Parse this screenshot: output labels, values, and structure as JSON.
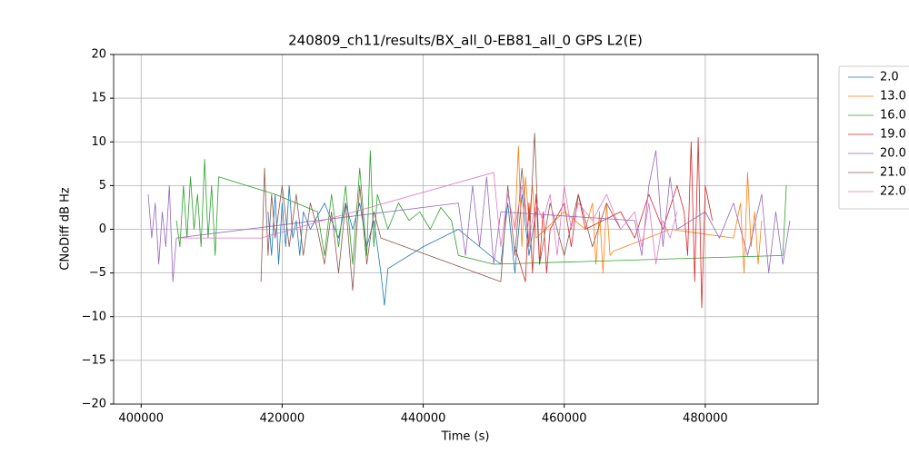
{
  "chart_data": {
    "type": "line",
    "title": "240809_ch11/results/BX_all_0-EB81_all_0 GPS L2(E)",
    "x_label": "Time (s)",
    "y_label": "CNoDiff dB Hz",
    "xlim": [
      396100,
      496000
    ],
    "ylim": [
      -20,
      20
    ],
    "xticks": [
      400000,
      420000,
      440000,
      460000,
      480000
    ],
    "yticks": [
      {
        "value": -20,
        "label": "−20"
      },
      {
        "value": -15,
        "label": "−15"
      },
      {
        "value": -10,
        "label": "−10"
      },
      {
        "value": -5,
        "label": "−5"
      },
      0,
      5,
      10,
      15,
      20
    ],
    "grid": true,
    "legend": "outside-upper-right",
    "series": [
      {
        "name": "2.0",
        "color": "#1f77b4",
        "x": [
          418000,
          418500,
          419000,
          419500,
          420000,
          420500,
          421000,
          421500,
          422000,
          422500,
          423000,
          424000,
          426000,
          428000,
          429000,
          430000,
          431000,
          432000,
          433000,
          434000,
          434500,
          435000,
          440000,
          445000,
          451000,
          452000,
          453000,
          454000,
          455000,
          456000
        ],
        "values": [
          2,
          -3,
          4,
          -4,
          3,
          -2,
          5,
          -1,
          1,
          -3,
          2,
          0,
          3,
          -1,
          3,
          0,
          3,
          -2,
          1,
          -5,
          -8.7,
          -4.5,
          -2,
          0,
          -4,
          3,
          -5,
          4,
          -3,
          2
        ]
      },
      {
        "name": "13.0",
        "color": "#ff7f0e",
        "x": [
          453000,
          453500,
          454000,
          454500,
          455000,
          455500,
          456000,
          460000,
          463000,
          464000,
          464500,
          465000,
          465500,
          466000,
          466500,
          467000,
          475000,
          484000,
          485000,
          485500,
          486000,
          486500,
          487000,
          487500,
          488000
        ],
        "values": [
          0,
          9.5,
          -2,
          6,
          1,
          5,
          -1,
          2,
          0,
          3,
          -4,
          2,
          -5,
          3,
          -3,
          -2.5,
          0,
          -1,
          3,
          -5,
          6.5,
          -2,
          2,
          -4,
          1
        ]
      },
      {
        "name": "16.0",
        "color": "#2ca02c",
        "x": [
          405000,
          405500,
          406000,
          406500,
          407000,
          407500,
          408000,
          408500,
          409000,
          409500,
          410000,
          410500,
          411000,
          419000,
          425000,
          426000,
          427000,
          428000,
          429000,
          430000,
          431000,
          432000,
          432500,
          433000,
          433500,
          435000,
          436500,
          438000,
          439500,
          441000,
          442500,
          444000,
          445000,
          450000,
          491000,
          491500
        ],
        "values": [
          1,
          -2,
          5,
          -1,
          6,
          0,
          4,
          -2,
          8,
          -1,
          5,
          -3,
          6,
          4,
          2,
          -3,
          4,
          -2,
          5,
          -4,
          7,
          -3,
          9,
          -2,
          4,
          0,
          3,
          1,
          2,
          0,
          2.5,
          1,
          -3,
          -4,
          -3,
          5
        ]
      },
      {
        "name": "19.0",
        "color": "#d62728",
        "x": [
          453000,
          454500,
          455000,
          455500,
          456000,
          456500,
          457000,
          457500,
          458000,
          460000,
          461000,
          462000,
          463000,
          468000,
          470000,
          472000,
          474000,
          476000,
          477000,
          477500,
          478000,
          478500,
          479000,
          479500,
          480000,
          481000
        ],
        "values": [
          -2,
          -6,
          3,
          -5,
          4,
          -4,
          2,
          -5,
          0,
          3,
          -2,
          4,
          0,
          2,
          -1,
          4,
          0,
          5,
          2,
          -3,
          10,
          -6,
          10.5,
          -9,
          5,
          1
        ]
      },
      {
        "name": "20.0",
        "color": "#9467bd",
        "x": [
          401000,
          401500,
          402000,
          402500,
          403000,
          403500,
          404000,
          404500,
          405000,
          445000,
          446000,
          447000,
          448000,
          449000,
          450000,
          451000,
          470000,
          471000,
          472000,
          473000,
          474000,
          475000,
          476000,
          480000,
          482000,
          484000,
          486000,
          488000,
          489000,
          490000,
          491000,
          492000
        ],
        "values": [
          4,
          -1,
          3,
          -4,
          2,
          -2,
          5,
          -6,
          -1,
          3,
          -3,
          5,
          -2,
          6,
          -4,
          2,
          1,
          -3,
          5,
          9,
          -2,
          6,
          0,
          2,
          -1,
          3,
          -3,
          4,
          -5,
          2,
          -4,
          1
        ]
      },
      {
        "name": "21.0",
        "color": "#8c564b",
        "x": [
          417000,
          417500,
          418000,
          418500,
          419000,
          420000,
          421000,
          422000,
          423000,
          424000,
          425000,
          426000,
          427000,
          428000,
          429000,
          430000,
          431000,
          432000,
          433000,
          434000,
          451000,
          452000,
          453000,
          454000,
          455000,
          455800,
          456500,
          458000,
          460000,
          462000,
          464000,
          466000,
          468000
        ],
        "values": [
          -6,
          7,
          -3,
          4,
          -1,
          5,
          -2,
          4,
          -3,
          3,
          0,
          -4,
          2,
          -5,
          3,
          -7,
          5,
          -4,
          2,
          -1,
          -6,
          5,
          -3,
          7,
          -2,
          11,
          -4,
          3,
          -3,
          4,
          -2,
          3,
          0
        ]
      },
      {
        "name": "22.0",
        "color": "#e377c2",
        "x": [
          405000,
          417000,
          450000,
          451000,
          452000,
          453000,
          454000,
          455000,
          456000,
          457000,
          458000,
          459000,
          460000,
          461000,
          462000,
          464000,
          466000,
          468000,
          470000,
          471000,
          472000,
          473000,
          474000,
          475000,
          476000
        ],
        "values": [
          -1,
          -1,
          6.5,
          -2,
          4,
          0,
          5,
          -1,
          3,
          1,
          4,
          -3,
          5,
          0,
          3,
          1,
          4,
          0,
          2,
          -2,
          3,
          -4,
          1,
          -1,
          2
        ]
      }
    ]
  }
}
